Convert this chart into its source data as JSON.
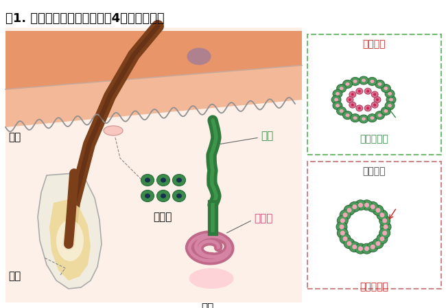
{
  "title": "図1. ヒト汗腺を構成している4つの細胞集団",
  "title_fontsize": 13,
  "bg_color": "#ffffff",
  "labels": {
    "hyohi": "表皮",
    "moho": "毛包",
    "kankan": "幹細胞",
    "kanku": "汗管",
    "bunpitsusen": "分泌腺",
    "kanzen": "汗腺",
    "kanku_saibo1": "管腔細胞",
    "kiteiso_saibo": "基底層細胞",
    "kanku_saibo2": "管腔細胞",
    "kinjohi_saibo": "筋上皮細胞"
  },
  "colors": {
    "skin_top": "#e8956a",
    "skin_mid": "#f2b898",
    "skin_bottom": "#fae0d0",
    "dermis_bg": "#fdf0e8",
    "hair": "#7b3f1a",
    "hair_dark": "#4a2010",
    "follicle_outer": "#f0ede0",
    "follicle_inner": "#eed898",
    "purple_spot": "#8070aa",
    "sweat_duct_outer": "#2d7a3a",
    "sweat_duct_inner": "#4aaa5a",
    "sweat_gland": "#c06888",
    "sweat_gland_light": "#e090b0",
    "stem_outer": "#3a8a4a",
    "stem_inner": "#1a3050",
    "pink_glow": "#ffb8c8",
    "cell_green": "#4a9a5a",
    "cell_green_dark": "#2a6a3a",
    "cell_pink": "#d87090",
    "cell_pink_light": "#f0a8b8",
    "box1_border": "#70bb70",
    "box2_border": "#cc8888",
    "label_green": "#3a8a4a",
    "label_pink": "#cc4477",
    "label_red": "#cc2222",
    "label_darkgray": "#444444",
    "wave_line": "#909090",
    "skin_border": "#c8a898"
  }
}
